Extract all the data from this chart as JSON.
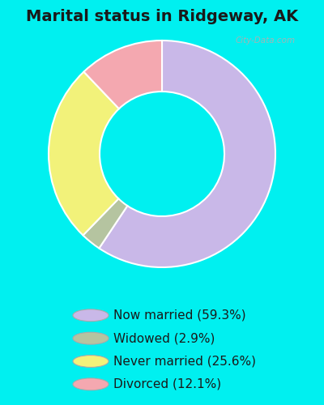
{
  "title": "Marital status in Ridgeway, AK",
  "slices": [
    59.3,
    2.9,
    25.6,
    12.1
  ],
  "labels": [
    "Now married (59.3%)",
    "Widowed (2.9%)",
    "Never married (25.6%)",
    "Divorced (12.1%)"
  ],
  "colors": [
    "#c9b8e8",
    "#b5c4a0",
    "#f2f27a",
    "#f4a8b0"
  ],
  "bg_color": "#00f0f0",
  "chart_bg": "#dff0e8",
  "watermark": "City-Data.com",
  "title_fontsize": 14,
  "legend_fontsize": 11,
  "start_angle": 90,
  "donut_width": 0.45
}
